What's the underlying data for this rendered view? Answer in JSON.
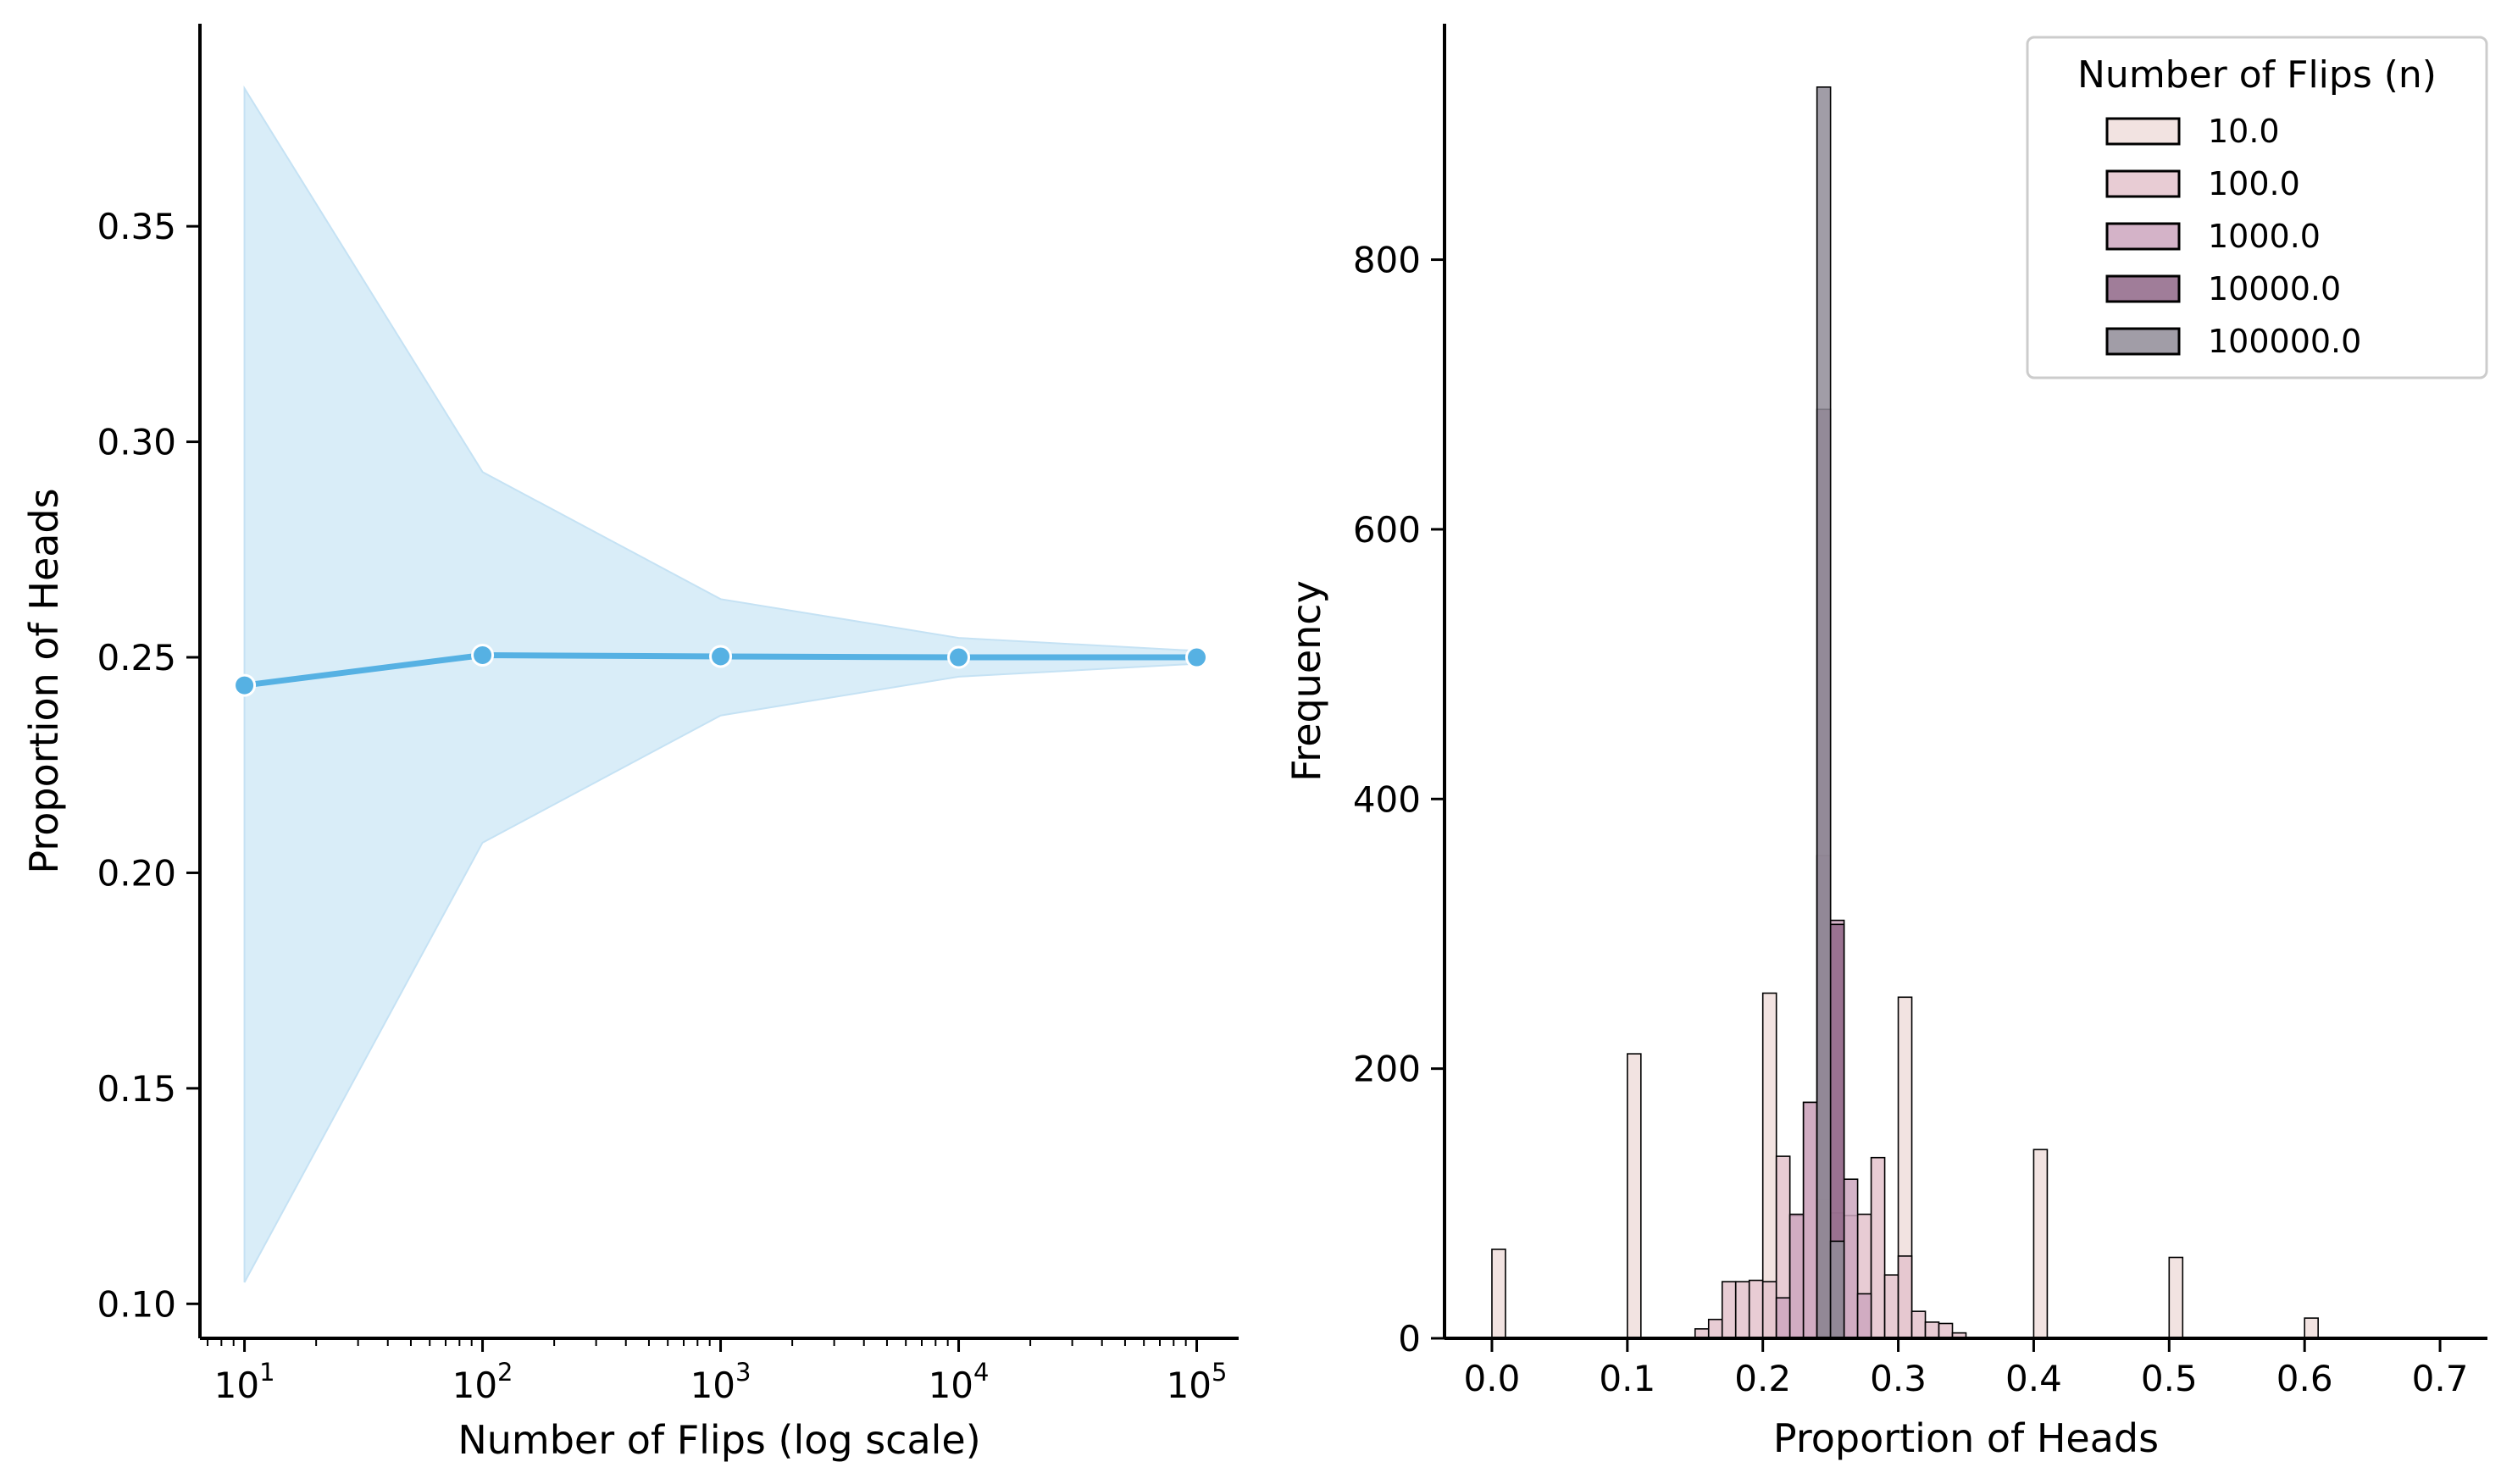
{
  "chart_data": [
    {
      "type": "line",
      "xlabel": "Number of Flips (log scale)",
      "ylabel": "Proportion of Heads",
      "x_scale": "log",
      "xlim": [
        6.5,
        150000
      ],
      "ylim": [
        0.092,
        0.397
      ],
      "x_tick_values": [
        10,
        100,
        1000,
        10000,
        100000
      ],
      "x_tick_labels": [
        {
          "base": "10",
          "exp": "1"
        },
        {
          "base": "10",
          "exp": "2"
        },
        {
          "base": "10",
          "exp": "3"
        },
        {
          "base": "10",
          "exp": "4"
        },
        {
          "base": "10",
          "exp": "5"
        }
      ],
      "y_ticks": [
        0.1,
        0.15,
        0.2,
        0.25,
        0.3,
        0.35
      ],
      "y_tick_labels": [
        "0.10",
        "0.15",
        "0.20",
        "0.25",
        "0.30",
        "0.35"
      ],
      "x": [
        10,
        100,
        1000,
        10000,
        100000
      ],
      "y": [
        0.2435,
        0.2505,
        0.2502,
        0.25,
        0.25
      ],
      "band_lower": [
        0.105,
        0.207,
        0.2365,
        0.2455,
        0.2485
      ],
      "band_upper": [
        0.382,
        0.293,
        0.2635,
        0.2545,
        0.2515
      ],
      "color": "#56b1e3",
      "band_color": "#d9edf8",
      "grid": false
    },
    {
      "type": "histogram",
      "xlabel": "Proportion of Heads",
      "ylabel": "Frequency",
      "xlim": [
        -0.035,
        0.735
      ],
      "ylim": [
        0,
        975
      ],
      "x_ticks": [
        0.0,
        0.1,
        0.2,
        0.3,
        0.4,
        0.5,
        0.6,
        0.7
      ],
      "x_tick_labels": [
        "0.0",
        "0.1",
        "0.2",
        "0.3",
        "0.4",
        "0.5",
        "0.6",
        "0.7"
      ],
      "y_ticks": [
        0,
        200,
        400,
        600,
        800
      ],
      "y_tick_labels": [
        "0",
        "200",
        "400",
        "600",
        "800"
      ],
      "bin_width": 0.01,
      "legend": {
        "title": "Number of Flips (n)",
        "position": "top-right",
        "labels": [
          "10.0",
          "100.0",
          "1000.0",
          "10000.0",
          "100000.0"
        ]
      },
      "series": [
        {
          "name": "10.0",
          "color": "#f0dedc",
          "bins": [
            [
              0.0,
              66
            ],
            [
              0.1,
              211
            ],
            [
              0.2,
              256
            ],
            [
              0.3,
              253
            ],
            [
              0.4,
              140
            ],
            [
              0.5,
              60
            ],
            [
              0.6,
              15
            ]
          ]
        },
        {
          "name": "100.0",
          "color": "#e4c3cd",
          "bins": [
            [
              0.15,
              7
            ],
            [
              0.16,
              14
            ],
            [
              0.17,
              42
            ],
            [
              0.18,
              42
            ],
            [
              0.19,
              43
            ],
            [
              0.2,
              42
            ],
            [
              0.21,
              135
            ],
            [
              0.22,
              91
            ],
            [
              0.23,
              175
            ],
            [
              0.24,
              103
            ],
            [
              0.25,
              93
            ],
            [
              0.26,
              91
            ],
            [
              0.27,
              92
            ],
            [
              0.28,
              134
            ],
            [
              0.29,
              47
            ],
            [
              0.3,
              61
            ],
            [
              0.31,
              20
            ],
            [
              0.32,
              12
            ],
            [
              0.33,
              11
            ],
            [
              0.34,
              4
            ]
          ]
        },
        {
          "name": "1000.0",
          "color": "#cda6be",
          "bins": [
            [
              0.21,
              30
            ],
            [
              0.22,
              92
            ],
            [
              0.23,
              175
            ],
            [
              0.24,
              358
            ],
            [
              0.25,
              310
            ],
            [
              0.26,
              118
            ],
            [
              0.27,
              33
            ]
          ]
        },
        {
          "name": "10000.0",
          "color": "#8f6687",
          "bins": [
            [
              0.24,
              689
            ],
            [
              0.25,
              307
            ]
          ]
        },
        {
          "name": "100000.0",
          "color": "#908c98",
          "bins": [
            [
              0.24,
              928
            ],
            [
              0.25,
              72
            ]
          ]
        }
      ]
    }
  ]
}
